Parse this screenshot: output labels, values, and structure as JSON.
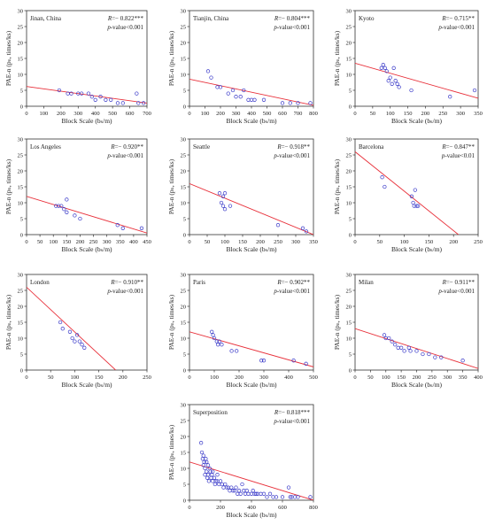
{
  "figure": {
    "type": "scatter-grid",
    "point_color": "#3b3bc9",
    "fit_color": "#e8303a"
  },
  "chart_data": [
    {
      "type": "scatter",
      "title": "Jinan, China",
      "r_text": "R=− 0.822***",
      "p_text": "p-value<0.001",
      "xlabel": "Block Scale (bₛ/m)",
      "ylabel": "PAE-n (pₙ, times/ks)",
      "xlim": [
        0,
        700
      ],
      "ylim": [
        0,
        30
      ],
      "xticks": [
        0,
        100,
        200,
        300,
        400,
        500,
        600,
        700
      ],
      "yticks": [
        0,
        5,
        10,
        15,
        20,
        25,
        30
      ],
      "fit": {
        "x": [
          0,
          700
        ],
        "y": [
          6.2,
          1.0
        ]
      },
      "points": [
        [
          190,
          5
        ],
        [
          240,
          4
        ],
        [
          260,
          4
        ],
        [
          300,
          4
        ],
        [
          320,
          4
        ],
        [
          360,
          4
        ],
        [
          380,
          3
        ],
        [
          400,
          2
        ],
        [
          430,
          3
        ],
        [
          460,
          2
        ],
        [
          490,
          2
        ],
        [
          530,
          1
        ],
        [
          560,
          1
        ],
        [
          640,
          4
        ],
        [
          650,
          1
        ],
        [
          680,
          1
        ]
      ]
    },
    {
      "type": "scatter",
      "title": "Tianjin, China",
      "r_text": "R=− 0.804***",
      "p_text": "p-value<0.001",
      "xlabel": "Block Scale (bₛ/m)",
      "ylabel": "PAE-n (pₙ, times/ks)",
      "xlim": [
        0,
        800
      ],
      "ylim": [
        0,
        30
      ],
      "xticks": [
        0,
        100,
        200,
        300,
        400,
        500,
        600,
        700,
        800
      ],
      "yticks": [
        0,
        5,
        10,
        15,
        20,
        25,
        30
      ],
      "fit": {
        "x": [
          0,
          800
        ],
        "y": [
          8.5,
          0.3
        ]
      },
      "points": [
        [
          120,
          11
        ],
        [
          140,
          9
        ],
        [
          180,
          6
        ],
        [
          200,
          6
        ],
        [
          250,
          4
        ],
        [
          280,
          5
        ],
        [
          300,
          3
        ],
        [
          330,
          3
        ],
        [
          350,
          5
        ],
        [
          380,
          2
        ],
        [
          400,
          2
        ],
        [
          420,
          2
        ],
        [
          480,
          2
        ],
        [
          600,
          1
        ],
        [
          650,
          1
        ],
        [
          700,
          1
        ],
        [
          780,
          1
        ]
      ]
    },
    {
      "type": "scatter",
      "title": "Kyoto",
      "r_text": "R=− 0.715**",
      "p_text": "p-value<0.001",
      "xlabel": "Block Scale (bₛ/m)",
      "ylabel": "PAE-n (pₙ, times/ks)",
      "xlim": [
        0,
        350
      ],
      "ylim": [
        0,
        30
      ],
      "xticks": [
        0,
        50,
        100,
        150,
        200,
        250,
        300,
        350
      ],
      "yticks": [
        0,
        5,
        10,
        15,
        20,
        25,
        30
      ],
      "fit": {
        "x": [
          0,
          350
        ],
        "y": [
          13.5,
          2.5
        ]
      },
      "points": [
        [
          75,
          12
        ],
        [
          80,
          13
        ],
        [
          85,
          12
        ],
        [
          90,
          11
        ],
        [
          95,
          8
        ],
        [
          100,
          9
        ],
        [
          105,
          7
        ],
        [
          110,
          12
        ],
        [
          115,
          8
        ],
        [
          120,
          7
        ],
        [
          125,
          6
        ],
        [
          160,
          5
        ],
        [
          270,
          3
        ],
        [
          340,
          5
        ]
      ]
    },
    {
      "type": "scatter",
      "title": "Los Angeles",
      "r_text": "R=− 0.920**",
      "p_text": "p-value<0.001",
      "xlabel": "Block Scale (bₛ/m)",
      "ylabel": "PAE-n (pₙ, times/ks)",
      "xlim": [
        0,
        450
      ],
      "ylim": [
        0,
        30
      ],
      "xticks": [
        0,
        50,
        100,
        150,
        200,
        250,
        300,
        350,
        400,
        450
      ],
      "yticks": [
        0,
        5,
        10,
        15,
        20,
        25,
        30
      ],
      "fit": {
        "x": [
          0,
          450
        ],
        "y": [
          12,
          0.5
        ]
      },
      "points": [
        [
          110,
          9
        ],
        [
          120,
          9
        ],
        [
          130,
          9
        ],
        [
          140,
          8
        ],
        [
          150,
          11
        ],
        [
          150,
          7
        ],
        [
          180,
          6
        ],
        [
          200,
          5
        ],
        [
          340,
          3
        ],
        [
          360,
          2
        ],
        [
          430,
          2
        ]
      ]
    },
    {
      "type": "scatter",
      "title": "Seattle",
      "r_text": "R=− 0.918**",
      "p_text": "p-value<0.001",
      "xlabel": "Block Scale (bₛ/m)",
      "ylabel": "PAE-n (pₙ, times/ks)",
      "xlim": [
        0,
        350
      ],
      "ylim": [
        0,
        30
      ],
      "xticks": [
        0,
        50,
        100,
        150,
        200,
        250,
        300,
        350
      ],
      "yticks": [
        0,
        5,
        10,
        15,
        20,
        25,
        30
      ],
      "fit": {
        "x": [
          0,
          350
        ],
        "y": [
          16,
          0
        ]
      },
      "points": [
        [
          85,
          13
        ],
        [
          90,
          10
        ],
        [
          95,
          12
        ],
        [
          95,
          9
        ],
        [
          100,
          8
        ],
        [
          100,
          13
        ],
        [
          115,
          9
        ],
        [
          250,
          3
        ],
        [
          320,
          2
        ],
        [
          330,
          1
        ]
      ]
    },
    {
      "type": "scatter",
      "title": "Barcelona",
      "r_text": "R=− 0.847**",
      "p_text": "p-value<0.01",
      "xlabel": "Block Scale (bₛ/m)",
      "ylabel": "PAE-n (pₙ, times/ks)",
      "xlim": [
        0,
        250
      ],
      "ylim": [
        0,
        30
      ],
      "xticks": [
        0,
        50,
        100,
        150,
        200,
        250
      ],
      "yticks": [
        0,
        5,
        10,
        15,
        20,
        25,
        30
      ],
      "fit": {
        "x": [
          0,
          210
        ],
        "y": [
          26,
          0
        ]
      },
      "points": [
        [
          55,
          18
        ],
        [
          60,
          15
        ],
        [
          115,
          12
        ],
        [
          118,
          10
        ],
        [
          120,
          9
        ],
        [
          122,
          14
        ],
        [
          125,
          9
        ],
        [
          128,
          9
        ]
      ]
    },
    {
      "type": "scatter",
      "title": "London",
      "r_text": "R=− 0.910**",
      "p_text": "p-value<0.001",
      "xlabel": "Block Scale (bₛ/m)",
      "ylabel": "PAE-n (pₙ, times/ks)",
      "xlim": [
        0,
        250
      ],
      "ylim": [
        0,
        30
      ],
      "xticks": [
        0,
        50,
        100,
        150,
        200,
        250
      ],
      "yticks": [
        0,
        5,
        10,
        15,
        20,
        25,
        30
      ],
      "fit": {
        "x": [
          0,
          185
        ],
        "y": [
          26,
          0
        ]
      },
      "points": [
        [
          70,
          15
        ],
        [
          75,
          13
        ],
        [
          90,
          12
        ],
        [
          95,
          10
        ],
        [
          100,
          9
        ],
        [
          105,
          11
        ],
        [
          110,
          9
        ],
        [
          115,
          8
        ],
        [
          120,
          7
        ]
      ]
    },
    {
      "type": "scatter",
      "title": "Paris",
      "r_text": "R=− 0.902**",
      "p_text": "p-value<0.001",
      "xlabel": "Block Scale (bₛ/m)",
      "ylabel": "PAE-n (pₙ, times/ks)",
      "xlim": [
        0,
        500
      ],
      "ylim": [
        0,
        30
      ],
      "xticks": [
        0,
        100,
        200,
        300,
        400,
        500
      ],
      "yticks": [
        0,
        5,
        10,
        15,
        20,
        25,
        30
      ],
      "fit": {
        "x": [
          0,
          500
        ],
        "y": [
          12,
          1
        ]
      },
      "points": [
        [
          90,
          12
        ],
        [
          95,
          11
        ],
        [
          100,
          10
        ],
        [
          110,
          9
        ],
        [
          115,
          8
        ],
        [
          120,
          9
        ],
        [
          130,
          8
        ],
        [
          170,
          6
        ],
        [
          190,
          6
        ],
        [
          290,
          3
        ],
        [
          300,
          3
        ],
        [
          420,
          3
        ],
        [
          470,
          2
        ]
      ]
    },
    {
      "type": "scatter",
      "title": "Milan",
      "r_text": "R=− 0.911**",
      "p_text": "p-value<0.001",
      "xlabel": "Block Scale (bₛ/m)",
      "ylabel": "PAE-n (pₙ, times/ks)",
      "xlim": [
        0,
        400
      ],
      "ylim": [
        0,
        30
      ],
      "xticks": [
        0,
        50,
        100,
        150,
        200,
        250,
        300,
        350,
        400
      ],
      "yticks": [
        0,
        5,
        10,
        15,
        20,
        25,
        30
      ],
      "fit": {
        "x": [
          0,
          400
        ],
        "y": [
          13,
          0.5
        ]
      },
      "points": [
        [
          95,
          11
        ],
        [
          100,
          10
        ],
        [
          110,
          10
        ],
        [
          120,
          9
        ],
        [
          130,
          8
        ],
        [
          140,
          7
        ],
        [
          150,
          7
        ],
        [
          160,
          6
        ],
        [
          175,
          7
        ],
        [
          180,
          6
        ],
        [
          200,
          6
        ],
        [
          220,
          5
        ],
        [
          240,
          5
        ],
        [
          260,
          4
        ],
        [
          280,
          4
        ],
        [
          350,
          3
        ]
      ]
    },
    {
      "type": "scatter",
      "title": "Superposition",
      "r_text": "R=− 0.818***",
      "p_text": "p-value<0.001",
      "xlabel": "Block Scale (bₛ/m)",
      "ylabel": "PAE-n (pₙ, times/ks)",
      "xlim": [
        0,
        800
      ],
      "ylim": [
        0,
        30
      ],
      "xticks": [
        0,
        200,
        400,
        600,
        800
      ],
      "yticks": [
        0,
        5,
        10,
        15,
        20,
        25,
        30
      ],
      "fit": {
        "x": [
          0,
          800
        ],
        "y": [
          12,
          0
        ]
      },
      "points": [
        [
          75,
          18
        ],
        [
          80,
          15
        ],
        [
          85,
          13
        ],
        [
          90,
          14
        ],
        [
          90,
          11
        ],
        [
          95,
          12
        ],
        [
          100,
          10
        ],
        [
          100,
          8
        ],
        [
          105,
          13
        ],
        [
          110,
          9
        ],
        [
          110,
          12
        ],
        [
          115,
          7
        ],
        [
          120,
          11
        ],
        [
          120,
          8
        ],
        [
          125,
          6
        ],
        [
          130,
          10
        ],
        [
          135,
          9
        ],
        [
          140,
          7
        ],
        [
          145,
          8
        ],
        [
          150,
          6
        ],
        [
          150,
          9
        ],
        [
          160,
          7
        ],
        [
          165,
          5
        ],
        [
          170,
          6
        ],
        [
          180,
          6
        ],
        [
          180,
          8
        ],
        [
          190,
          5
        ],
        [
          200,
          6
        ],
        [
          210,
          5
        ],
        [
          220,
          4
        ],
        [
          230,
          5
        ],
        [
          240,
          4
        ],
        [
          250,
          4
        ],
        [
          260,
          3
        ],
        [
          270,
          4
        ],
        [
          280,
          3
        ],
        [
          290,
          3
        ],
        [
          300,
          4
        ],
        [
          310,
          2
        ],
        [
          320,
          3
        ],
        [
          330,
          2
        ],
        [
          340,
          5
        ],
        [
          350,
          3
        ],
        [
          360,
          2
        ],
        [
          370,
          3
        ],
        [
          380,
          2
        ],
        [
          400,
          2
        ],
        [
          410,
          3
        ],
        [
          420,
          2
        ],
        [
          430,
          2
        ],
        [
          440,
          2
        ],
        [
          460,
          2
        ],
        [
          480,
          2
        ],
        [
          500,
          1
        ],
        [
          520,
          2
        ],
        [
          540,
          1
        ],
        [
          560,
          1
        ],
        [
          600,
          1
        ],
        [
          640,
          4
        ],
        [
          650,
          1
        ],
        [
          660,
          1
        ],
        [
          680,
          1
        ],
        [
          700,
          1
        ],
        [
          780,
          1
        ]
      ]
    }
  ]
}
